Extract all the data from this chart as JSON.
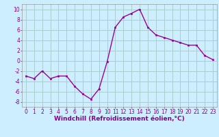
{
  "x": [
    0,
    1,
    2,
    3,
    4,
    5,
    6,
    7,
    8,
    9,
    10,
    11,
    12,
    13,
    14,
    15,
    16,
    17,
    18,
    19,
    20,
    21,
    22,
    23
  ],
  "y": [
    -3,
    -3.5,
    -2,
    -3.5,
    -3,
    -3,
    -5,
    -6.5,
    -7.5,
    -5.5,
    -0.2,
    6.5,
    8.5,
    9.2,
    10,
    6.5,
    5,
    4.5,
    4,
    3.5,
    3,
    3,
    1,
    0.2
  ],
  "line_color": "#990099",
  "marker_color": "#990099",
  "bg_color": "#cceeff",
  "grid_color": "#aacccc",
  "xlabel": "Windchill (Refroidissement éolien,°C)",
  "label_color": "#880088",
  "ylim": [
    -9,
    11
  ],
  "xlim": [
    -0.5,
    23.5
  ],
  "yticks": [
    -8,
    -6,
    -4,
    -2,
    0,
    2,
    4,
    6,
    8,
    10
  ],
  "xticks": [
    0,
    1,
    2,
    3,
    4,
    5,
    6,
    7,
    8,
    9,
    10,
    11,
    12,
    13,
    14,
    15,
    16,
    17,
    18,
    19,
    20,
    21,
    22,
    23
  ],
  "tick_fontsize": 5.5,
  "xlabel_fontsize": 6.5,
  "spine_color": "#999999",
  "linewidth": 1.0,
  "markersize": 2.0
}
